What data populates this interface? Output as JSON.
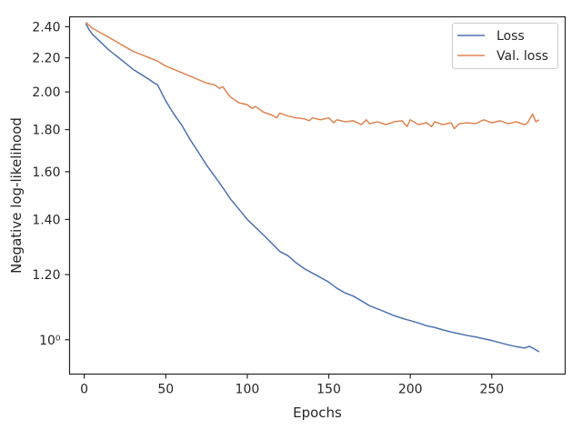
{
  "chart_data": {
    "type": "line",
    "title": "",
    "xlabel": "Epochs",
    "ylabel": "Negative log-likelihood",
    "xlim": [
      -9,
      295
    ],
    "ylim": [
      0.9085,
      2.4675
    ],
    "y_scale": "log",
    "grid": false,
    "legend_position": "top-right",
    "x_ticks": [
      {
        "value": 0,
        "label": "0"
      },
      {
        "value": 50,
        "label": "50"
      },
      {
        "value": 100,
        "label": "100"
      },
      {
        "value": 150,
        "label": "150"
      },
      {
        "value": 200,
        "label": "200"
      },
      {
        "value": 250,
        "label": "250"
      }
    ],
    "y_ticks": [
      {
        "value": 1.0,
        "label": "10⁰"
      },
      {
        "value": 1.2,
        "label": "1.20"
      },
      {
        "value": 1.4,
        "label": "1.40"
      },
      {
        "value": 1.6,
        "label": "1.60"
      },
      {
        "value": 1.8,
        "label": "1.80"
      },
      {
        "value": 2.0,
        "label": "2.00"
      },
      {
        "value": 2.2,
        "label": "2.20"
      },
      {
        "value": 2.4,
        "label": "2.40"
      }
    ],
    "series": [
      {
        "name": "Loss",
        "color": "#4c72b0",
        "x": [
          1,
          3,
          5,
          10,
          15,
          20,
          25,
          30,
          35,
          40,
          43,
          45,
          50,
          55,
          60,
          65,
          70,
          75,
          80,
          85,
          90,
          95,
          100,
          105,
          110,
          115,
          120,
          125,
          130,
          135,
          140,
          145,
          150,
          155,
          160,
          165,
          170,
          175,
          180,
          185,
          190,
          195,
          200,
          205,
          210,
          215,
          220,
          225,
          230,
          235,
          240,
          245,
          250,
          255,
          260,
          265,
          270,
          273,
          276,
          279
        ],
        "y": [
          2.42,
          2.38,
          2.35,
          2.3,
          2.25,
          2.21,
          2.17,
          2.13,
          2.1,
          2.07,
          2.05,
          2.04,
          1.95,
          1.88,
          1.82,
          1.75,
          1.69,
          1.63,
          1.58,
          1.53,
          1.48,
          1.44,
          1.4,
          1.37,
          1.34,
          1.31,
          1.28,
          1.265,
          1.24,
          1.22,
          1.205,
          1.19,
          1.175,
          1.155,
          1.14,
          1.13,
          1.115,
          1.1,
          1.09,
          1.08,
          1.07,
          1.062,
          1.055,
          1.048,
          1.04,
          1.035,
          1.028,
          1.022,
          1.017,
          1.012,
          1.008,
          1.003,
          0.998,
          0.992,
          0.986,
          0.981,
          0.977,
          0.982,
          0.975,
          0.967
        ]
      },
      {
        "name": "Val. loss",
        "color": "#dd8452",
        "x": [
          1,
          3,
          5,
          10,
          15,
          20,
          25,
          30,
          35,
          40,
          45,
          50,
          55,
          60,
          65,
          70,
          75,
          80,
          83,
          85,
          88,
          90,
          95,
          100,
          103,
          105,
          110,
          115,
          118,
          120,
          125,
          130,
          135,
          138,
          140,
          145,
          150,
          153,
          155,
          160,
          165,
          170,
          173,
          175,
          180,
          185,
          190,
          195,
          198,
          200,
          205,
          210,
          213,
          215,
          220,
          225,
          227,
          230,
          235,
          240,
          245,
          250,
          255,
          260,
          265,
          270,
          272,
          275,
          277,
          279
        ],
        "y": [
          2.43,
          2.41,
          2.39,
          2.36,
          2.33,
          2.3,
          2.27,
          2.24,
          2.22,
          2.2,
          2.18,
          2.15,
          2.13,
          2.11,
          2.09,
          2.07,
          2.05,
          2.04,
          2.02,
          2.03,
          1.99,
          1.97,
          1.94,
          1.93,
          1.91,
          1.92,
          1.89,
          1.875,
          1.86,
          1.885,
          1.87,
          1.86,
          1.855,
          1.845,
          1.86,
          1.85,
          1.86,
          1.835,
          1.85,
          1.84,
          1.845,
          1.825,
          1.85,
          1.83,
          1.84,
          1.825,
          1.84,
          1.845,
          1.815,
          1.85,
          1.825,
          1.835,
          1.815,
          1.84,
          1.825,
          1.835,
          1.805,
          1.83,
          1.835,
          1.83,
          1.85,
          1.835,
          1.845,
          1.83,
          1.84,
          1.825,
          1.835,
          1.88,
          1.84,
          1.85
        ]
      }
    ]
  }
}
